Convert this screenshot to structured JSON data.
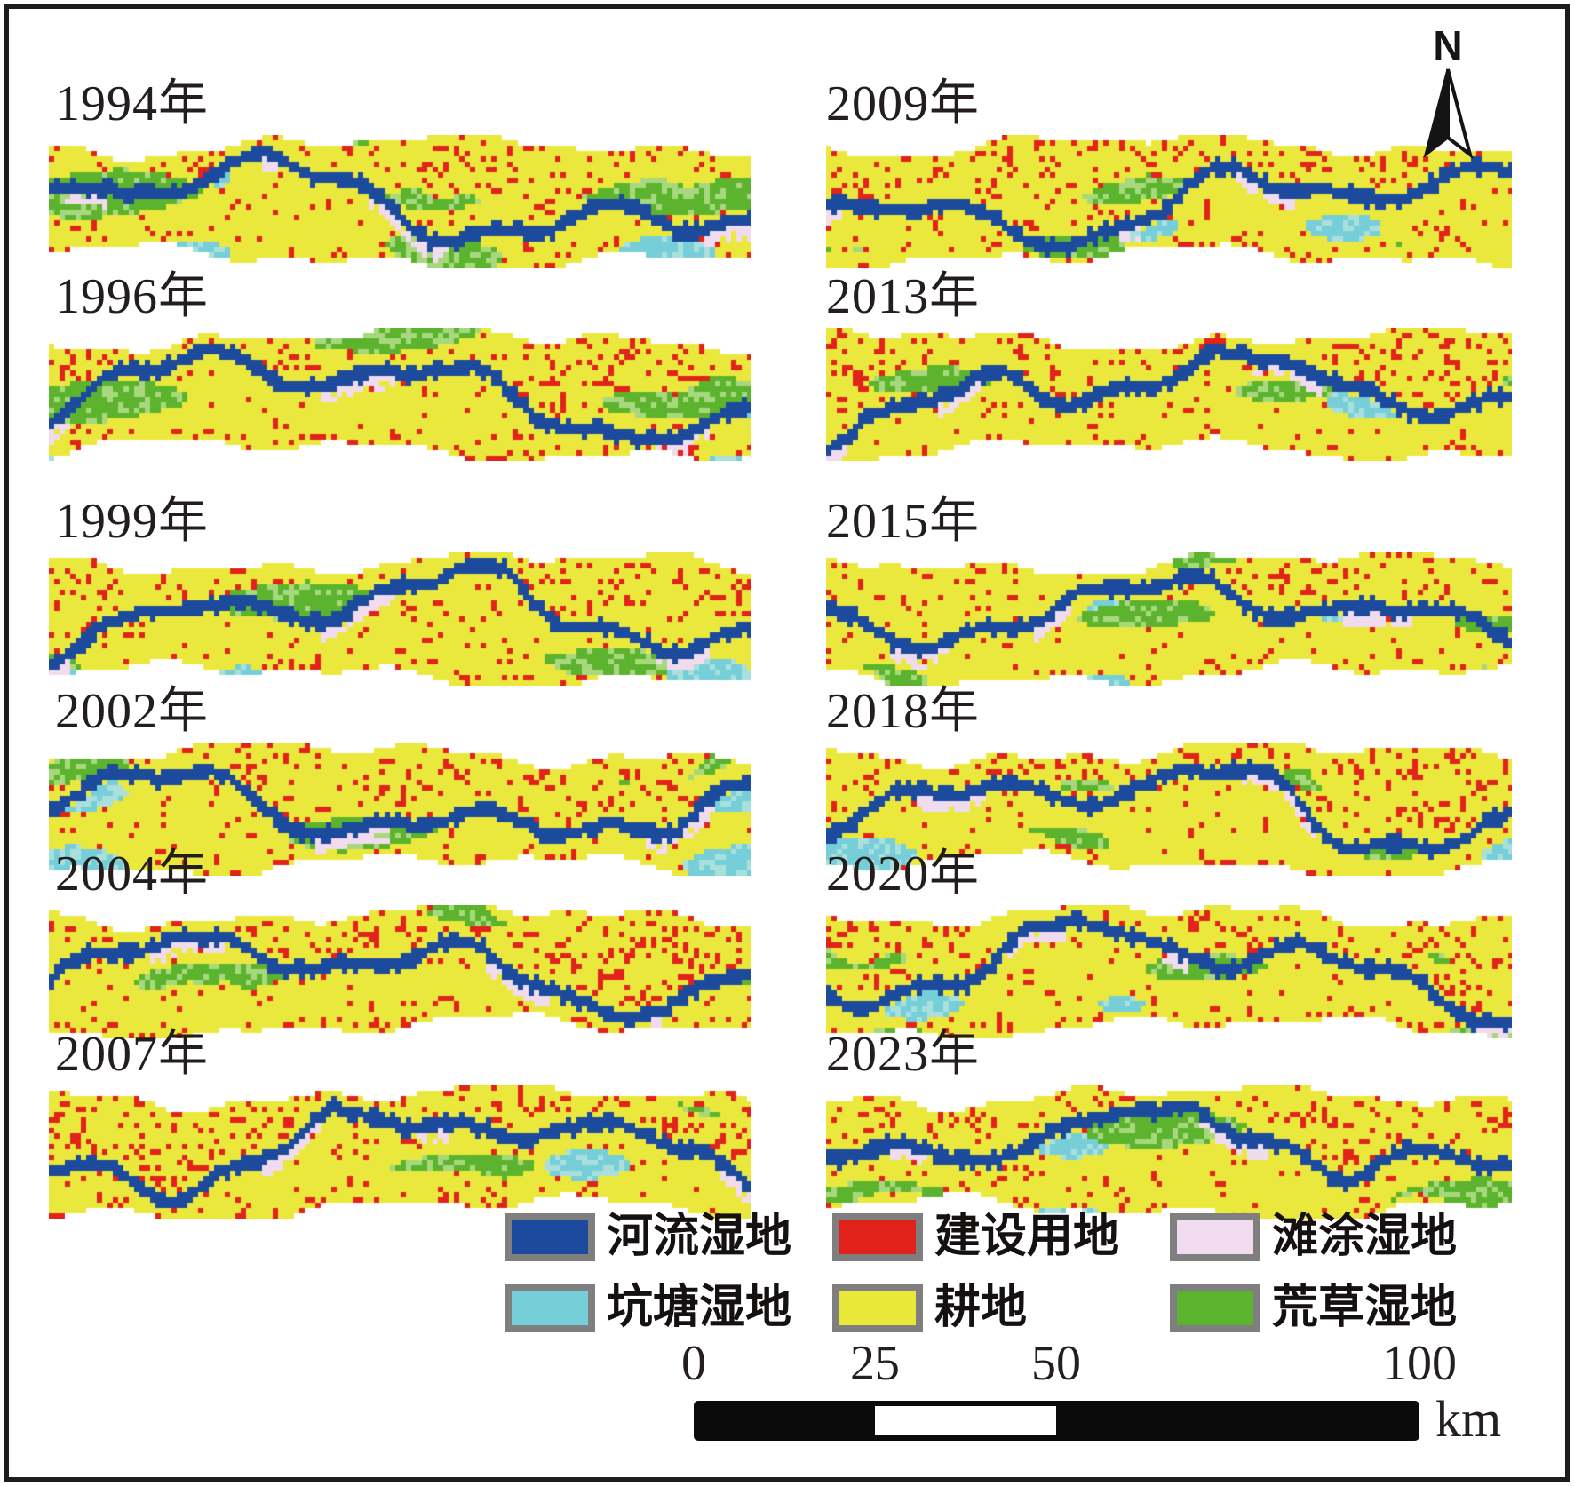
{
  "north_arrow": {
    "label": "N"
  },
  "panels": [
    {
      "year": "1994年",
      "texture": {
        "seed": 101,
        "green": 0.95,
        "red": 0.5,
        "pink": 0.7,
        "cyan": 0.55
      }
    },
    {
      "year": "1996年",
      "texture": {
        "seed": 202,
        "green": 0.72,
        "red": 0.62,
        "pink": 0.6,
        "cyan": 0.42
      }
    },
    {
      "year": "1999年",
      "texture": {
        "seed": 303,
        "green": 0.52,
        "red": 0.58,
        "pink": 0.55,
        "cyan": 0.38
      }
    },
    {
      "year": "2002年",
      "texture": {
        "seed": 404,
        "green": 0.46,
        "red": 0.52,
        "pink": 0.45,
        "cyan": 0.58
      }
    },
    {
      "year": "2004年",
      "texture": {
        "seed": 505,
        "green": 0.4,
        "red": 0.62,
        "pink": 0.45,
        "cyan": 0.32
      }
    },
    {
      "year": "2007年",
      "texture": {
        "seed": 606,
        "green": 0.44,
        "red": 0.66,
        "pink": 0.45,
        "cyan": 0.36
      }
    },
    {
      "year": "2009年",
      "texture": {
        "seed": 707,
        "green": 0.46,
        "red": 0.56,
        "pink": 0.4,
        "cyan": 0.4
      }
    },
    {
      "year": "2013年",
      "texture": {
        "seed": 808,
        "green": 0.42,
        "red": 0.62,
        "pink": 0.42,
        "cyan": 0.36
      }
    },
    {
      "year": "2015年",
      "texture": {
        "seed": 909,
        "green": 0.46,
        "red": 0.52,
        "pink": 0.46,
        "cyan": 0.4
      }
    },
    {
      "year": "2018年",
      "texture": {
        "seed": 111,
        "green": 0.46,
        "red": 0.62,
        "pink": 0.46,
        "cyan": 0.46
      }
    },
    {
      "year": "2020年",
      "texture": {
        "seed": 222,
        "green": 0.46,
        "red": 0.66,
        "pink": 0.42,
        "cyan": 0.4
      }
    },
    {
      "year": "2023年",
      "texture": {
        "seed": 333,
        "green": 0.5,
        "red": 0.6,
        "pink": 0.42,
        "cyan": 0.46
      }
    }
  ],
  "legend": {
    "items": [
      {
        "name": "river-wetland",
        "label": "河流湿地",
        "color": "#1c4a9c"
      },
      {
        "name": "construction-land",
        "label": "建设用地",
        "color": "#e2231b"
      },
      {
        "name": "tidal-flat-wetland",
        "label": "滩涂湿地",
        "color": "#f0dcee"
      },
      {
        "name": "pond-wetland",
        "label": "坑塘湿地",
        "color": "#76ced9"
      },
      {
        "name": "cultivated-land",
        "label": "耕地",
        "color": "#e9e838"
      },
      {
        "name": "grass-wetland",
        "label": "荒草湿地",
        "color": "#5cb42e"
      }
    ]
  },
  "scale_bar": {
    "ticks": [
      "0",
      "25",
      "50",
      "100"
    ],
    "unit": "km"
  },
  "map_colors": {
    "river": "#1c4a9c",
    "construction": "#e2231b",
    "tidal_flat": "#f0dcee",
    "pond": "#76ced9",
    "pond_pale": "#a9e0dc",
    "cultivated": "#ebe83d",
    "grass": "#5cb42e",
    "grass_light": "#a8d87e"
  }
}
